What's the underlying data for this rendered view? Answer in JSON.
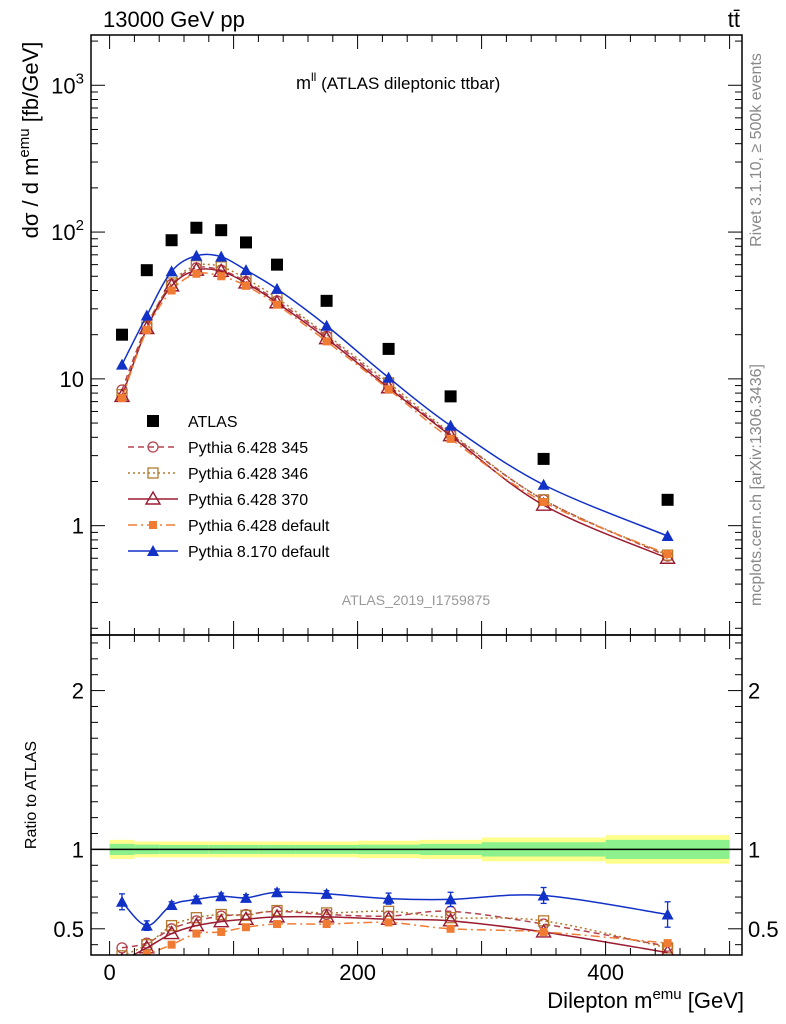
{
  "header": {
    "left": "13000 GeV pp",
    "right": "tt̄"
  },
  "side_labels": {
    "rivet": "Rivet 3.1.10, ≥ 500k events",
    "mcplots": "mcplots.cern.ch [arXiv:1306.3436]"
  },
  "watermark": "ATLAS_2019_I1759875",
  "chart_data": [
    {
      "type": "line",
      "title_main": "m",
      "title_sup": "ll",
      "title_rest": " (ATLAS dileptonic ttbar)",
      "ylabel": "dσ / d m",
      "ylabel_sup": "emu",
      "ylabel_unit": " [fb/GeV]",
      "yscale": "log",
      "ylim": [
        0.18,
        2200
      ],
      "xlim": [
        -15,
        510
      ],
      "ytick_labels": [
        "1",
        "10",
        "10",
        "10"
      ],
      "ytick_sups": [
        "",
        "",
        "2",
        "3"
      ],
      "x": [
        10,
        30,
        50,
        70,
        90,
        110,
        135,
        175,
        225,
        275,
        350,
        450
      ],
      "series": [
        {
          "name": "ATLAS",
          "color": "#000000",
          "marker": "square-filled",
          "line": "none",
          "values": [
            20,
            55,
            88,
            107,
            103,
            85,
            60,
            34,
            16,
            7.6,
            2.85,
            1.5
          ]
        },
        {
          "name": "Pythia 6.428 345",
          "color": "#b5434f",
          "marker": "circle-open",
          "line": "dashed",
          "values": [
            8.4,
            23,
            44,
            57,
            55,
            46,
            34,
            19.5,
            9.0,
            4.2,
            1.5,
            0.62
          ]
        },
        {
          "name": "Pythia 6.428 346",
          "color": "#b37a2d",
          "marker": "square-open",
          "line": "dotted",
          "values": [
            7.8,
            22.5,
            45,
            59,
            58,
            48,
            35.5,
            20,
            9.4,
            4.3,
            1.5,
            0.63
          ]
        },
        {
          "name": "Pythia 6.428 370",
          "color": "#9b1b30",
          "marker": "triangle-open",
          "line": "solid",
          "values": [
            7.6,
            22,
            43,
            55,
            54,
            45,
            33,
            18.8,
            8.7,
            4.1,
            1.38,
            0.6
          ]
        },
        {
          "name": "Pythia 6.428 default",
          "color": "#f07c34",
          "marker": "square-small",
          "line": "dashdot",
          "values": [
            7.4,
            21.5,
            40,
            52,
            50,
            43,
            32,
            18,
            8.5,
            3.9,
            1.45,
            0.64
          ]
        },
        {
          "name": "Pythia 8.170 default",
          "color": "#1131c7",
          "marker": "triangle-filled",
          "line": "solid",
          "values": [
            12.5,
            27,
            54,
            69,
            68,
            55,
            41,
            23,
            10.2,
            4.8,
            1.9,
            0.85
          ]
        }
      ]
    },
    {
      "type": "line",
      "ylabel": "Ratio to ATLAS",
      "xlabel": "Dilepton m",
      "xlabel_sup": "emu",
      "xlabel_unit": " [GeV]",
      "ylim": [
        0.335,
        2.35
      ],
      "xlim": [
        -15,
        510
      ],
      "yticks": [
        0.5,
        1,
        2
      ],
      "ytick_labels": [
        "0.5",
        "1",
        "2"
      ],
      "xticks": [
        0,
        200,
        400
      ],
      "xtick_labels": [
        "0",
        "200",
        "400"
      ],
      "band_edges": [
        0,
        20,
        40,
        60,
        80,
        100,
        120,
        150,
        200,
        250,
        300,
        400,
        500
      ],
      "band_inner": [
        0.035,
        0.03,
        0.028,
        0.028,
        0.028,
        0.028,
        0.028,
        0.028,
        0.03,
        0.035,
        0.045,
        0.06
      ],
      "band_outer": [
        0.06,
        0.05,
        0.05,
        0.05,
        0.05,
        0.05,
        0.05,
        0.05,
        0.055,
        0.06,
        0.075,
        0.09
      ],
      "band_colors": {
        "outer": "#ffff8c",
        "inner": "#8cf08c"
      },
      "series": [
        {
          "name": "Pythia 6.428 345",
          "values": [
            0.38,
            0.41,
            0.5,
            0.55,
            0.58,
            0.59,
            0.61,
            0.59,
            0.58,
            0.61,
            0.53,
            0.39
          ]
        },
        {
          "name": "Pythia 6.428 346",
          "values": [
            0.33,
            0.4,
            0.52,
            0.57,
            0.59,
            0.585,
            0.615,
            0.6,
            0.61,
            0.57,
            0.55,
            0.38
          ]
        },
        {
          "name": "Pythia 6.428 370",
          "values": [
            0.3,
            0.38,
            0.47,
            0.52,
            0.545,
            0.56,
            0.575,
            0.575,
            0.56,
            0.55,
            0.48,
            0.35
          ]
        },
        {
          "name": "Pythia 6.428 default",
          "values": [
            0.3,
            0.34,
            0.4,
            0.47,
            0.48,
            0.51,
            0.53,
            0.53,
            0.54,
            0.5,
            0.48,
            0.41
          ]
        },
        {
          "name": "Pythia 8.170 default",
          "values": [
            0.67,
            0.52,
            0.65,
            0.685,
            0.705,
            0.695,
            0.73,
            0.72,
            0.69,
            0.685,
            0.71,
            0.59
          ],
          "errors": [
            0.05,
            0.03,
            0.02,
            0.02,
            0.02,
            0.02,
            0.02,
            0.02,
            0.035,
            0.045,
            0.05,
            0.08
          ]
        }
      ]
    }
  ]
}
